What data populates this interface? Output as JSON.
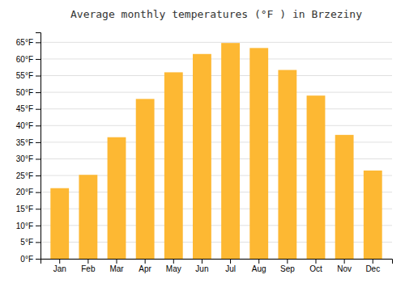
{
  "chart_data": {
    "type": "bar",
    "title": "Average monthly temperatures (°F ) in Brzeziny",
    "categories": [
      "Jan",
      "Feb",
      "Mar",
      "Apr",
      "May",
      "Jun",
      "Jul",
      "Aug",
      "Sep",
      "Oct",
      "Nov",
      "Dec"
    ],
    "values": [
      21.2,
      25.2,
      36.5,
      48.0,
      56.0,
      61.5,
      64.8,
      63.3,
      56.7,
      49.0,
      37.2,
      26.5
    ],
    "color": "#FDB833",
    "ylim": [
      0,
      68
    ],
    "yticks": [
      {
        "value": 0,
        "label": "0°F"
      },
      {
        "value": 5,
        "label": "5°F"
      },
      {
        "value": 10,
        "label": "10°F"
      },
      {
        "value": 15,
        "label": "15°F"
      },
      {
        "value": 20,
        "label": "20°F"
      },
      {
        "value": 25,
        "label": "25°F"
      },
      {
        "value": 30,
        "label": "30°F"
      },
      {
        "value": 35,
        "label": "35°F"
      },
      {
        "value": 40,
        "label": "40°F"
      },
      {
        "value": 45,
        "label": "45°F"
      },
      {
        "value": 50,
        "label": "50°F"
      },
      {
        "value": 55,
        "label": "55°F"
      },
      {
        "value": 60,
        "label": "60°F"
      },
      {
        "value": 65,
        "label": "65°F"
      }
    ],
    "grid": true
  }
}
